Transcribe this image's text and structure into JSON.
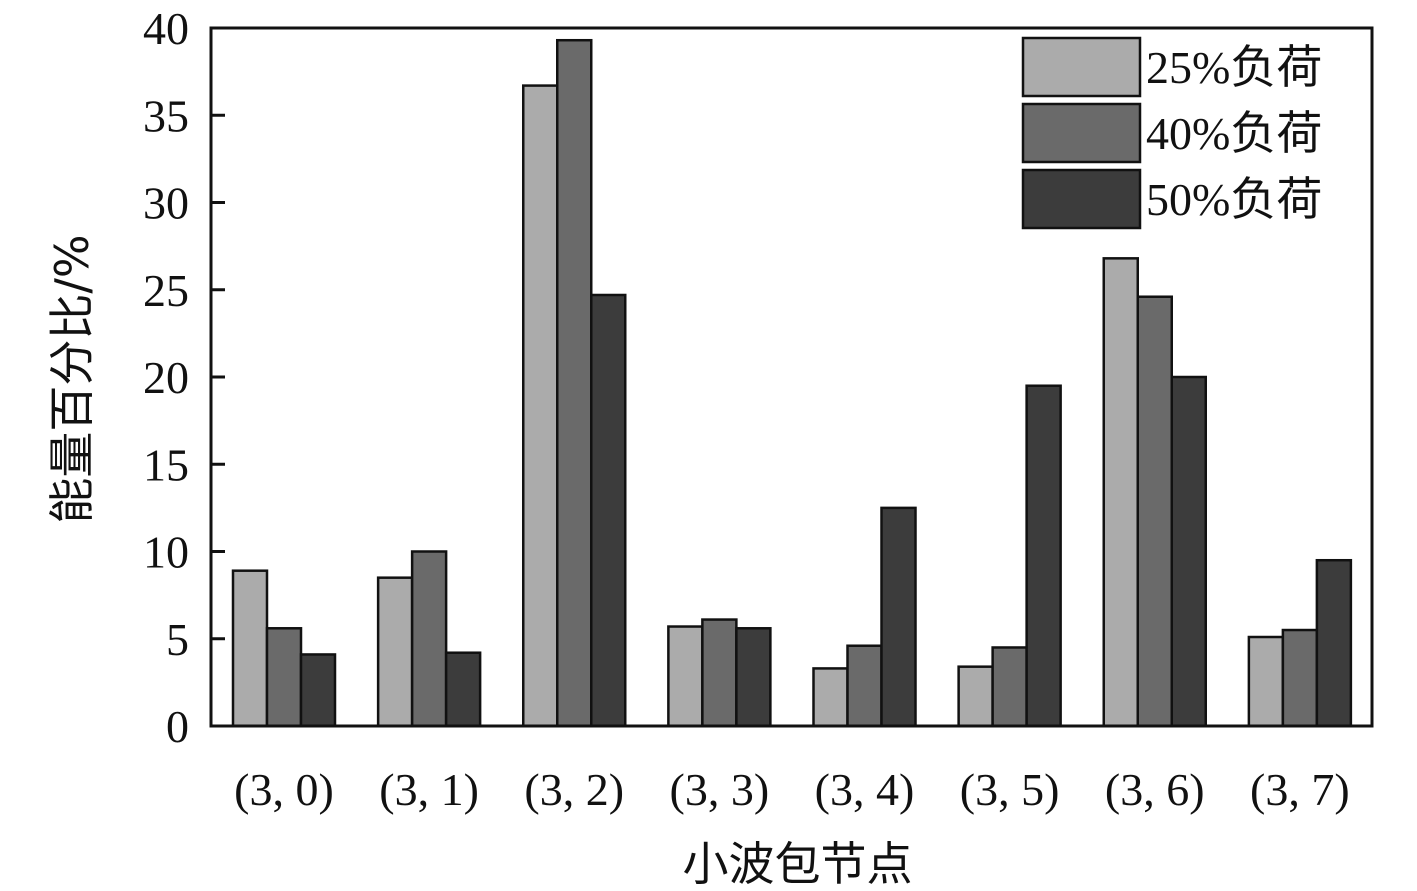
{
  "chart_data": {
    "type": "bar",
    "title": "",
    "xlabel": "小波包节点",
    "ylabel": "能量百分比/%",
    "ylim": [
      0,
      40
    ],
    "yticks": [
      0,
      5,
      10,
      15,
      20,
      25,
      30,
      35,
      40
    ],
    "categories": [
      "(3, 0)",
      "(3, 1)",
      "(3, 2)",
      "(3, 3)",
      "(3, 4)",
      "(3, 5)",
      "(3, 6)",
      "(3, 7)"
    ],
    "series": [
      {
        "name": "25%负荷",
        "color": "#ababab",
        "values": [
          8.9,
          8.5,
          36.7,
          5.7,
          3.3,
          3.4,
          26.8,
          5.1
        ]
      },
      {
        "name": "40%负荷",
        "color": "#6a6a6a",
        "values": [
          5.6,
          10.0,
          39.3,
          6.1,
          4.6,
          4.5,
          24.6,
          5.5
        ]
      },
      {
        "name": "50%负荷",
        "color": "#3c3c3c",
        "values": [
          4.1,
          4.2,
          24.7,
          5.6,
          12.5,
          19.5,
          20.0,
          9.5
        ]
      }
    ],
    "legend_position": "top-right",
    "grid": false
  }
}
